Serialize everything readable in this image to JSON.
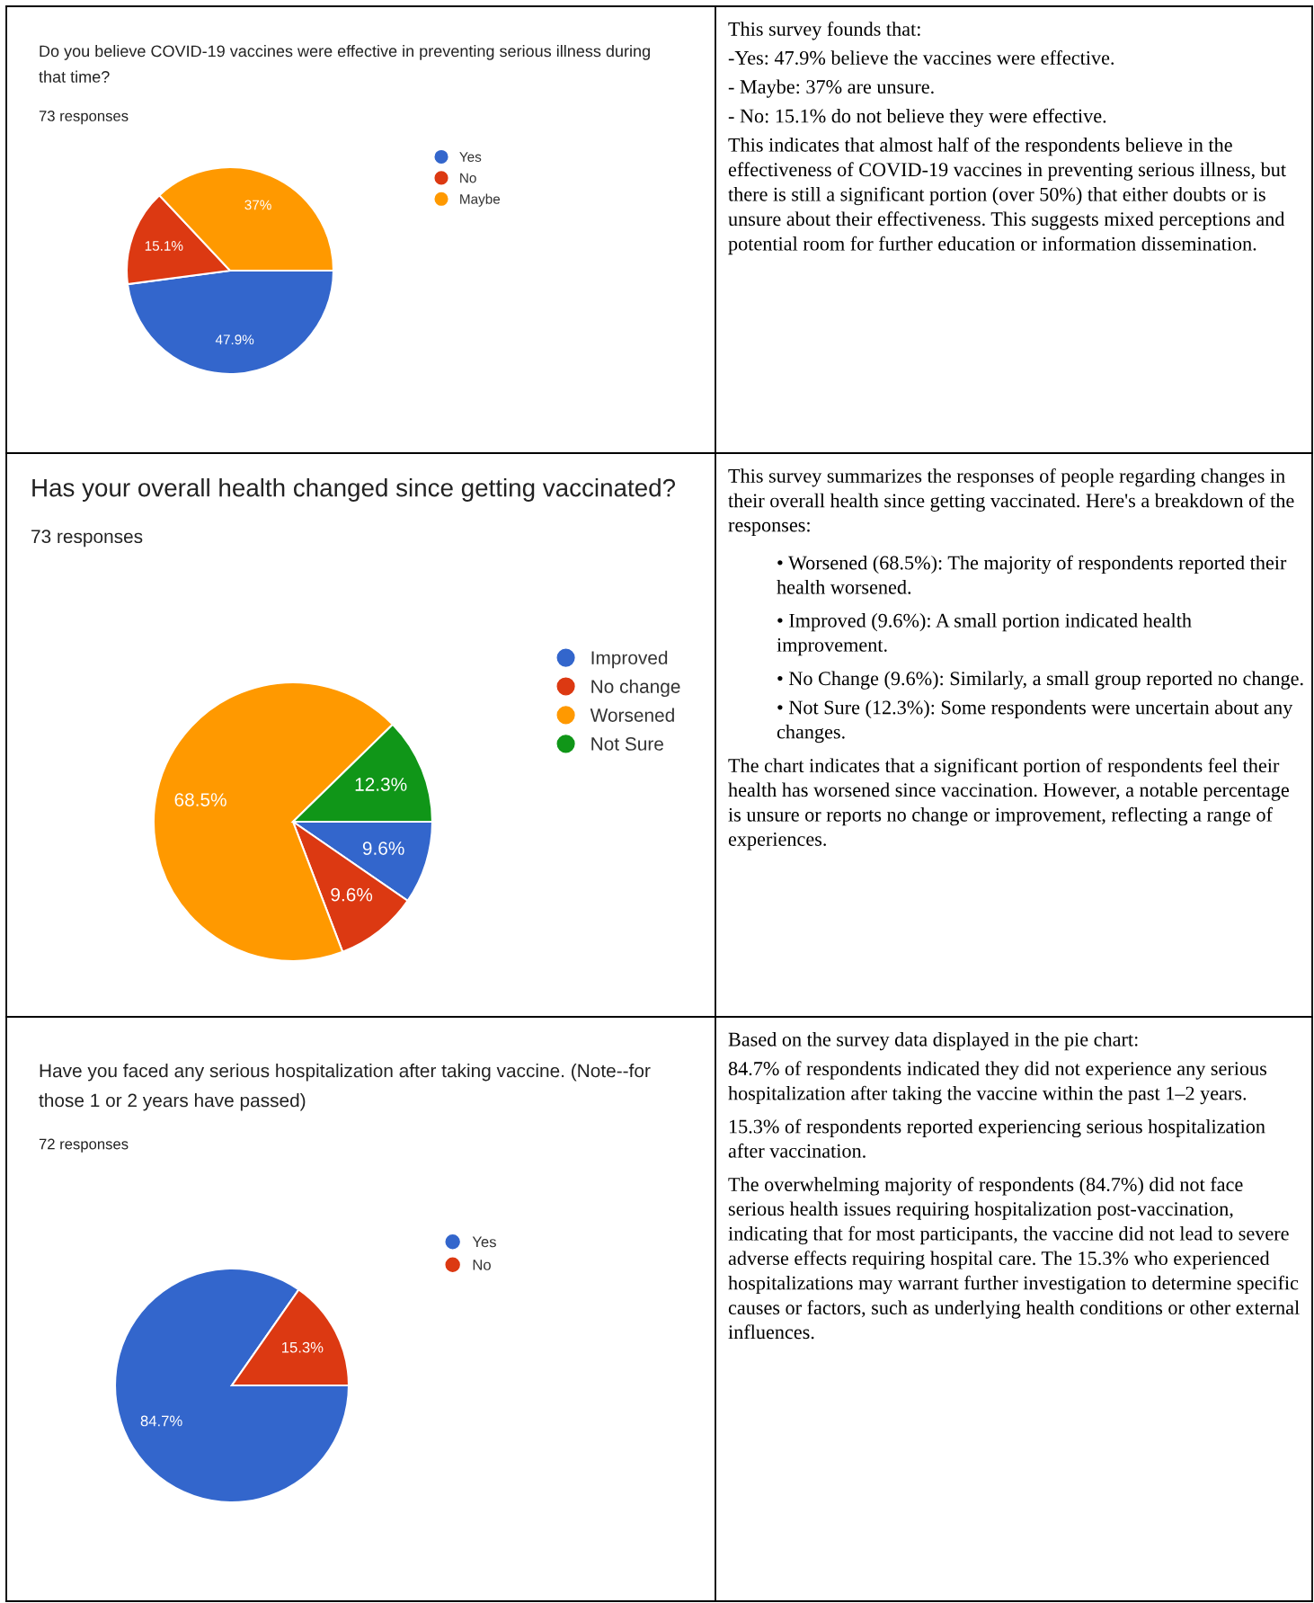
{
  "chart_data": [
    {
      "type": "pie",
      "title": "Do you believe COVID-19 vaccines were effective in preventing serious illness during that time?",
      "subtitle": "73 responses",
      "categories": [
        "Yes",
        "No",
        "Maybe"
      ],
      "values": [
        47.9,
        15.1,
        37
      ],
      "colors": [
        "#3366cc",
        "#dc3912",
        "#ff9900"
      ],
      "value_labels": [
        "47.9%",
        "15.1%",
        "37%"
      ],
      "legend": "right"
    },
    {
      "type": "other",
      "annotations": [
        "This survey founds that:",
        "-Yes: 47.9% believe the vaccines were effective.",
        "- Maybe: 37% are unsure.",
        "- No: 15.1% do not believe they were effective.",
        "This indicates that almost half of the respondents believe in the effectiveness of COVID-19 vaccines in preventing serious illness, but there is still a significant portion (over 50%) that either doubts or is unsure about their effectiveness. This suggests mixed perceptions and potential room for further education or information dissemination."
      ]
    },
    {
      "type": "pie",
      "title": "Has your overall health changed since getting vaccinated?",
      "subtitle": "73 responses",
      "categories": [
        "Improved",
        "No change",
        "Worsened",
        "Not Sure"
      ],
      "values": [
        9.6,
        9.6,
        68.5,
        12.3
      ],
      "colors": [
        "#3366cc",
        "#dc3912",
        "#ff9900",
        "#109618"
      ],
      "value_labels": [
        "9.6%",
        "9.6%",
        "68.5%",
        "12.3%"
      ],
      "legend": "right"
    },
    {
      "type": "other",
      "annotations": [
        "This survey summarizes the responses of people regarding changes in their overall health since getting vaccinated. Here's a breakdown of the responses:",
        "• Worsened (68.5%): The majority of respondents reported their health worsened.",
        "• Improved (9.6%): A small portion indicated health improvement.",
        "• No Change (9.6%): Similarly, a small group reported no change.",
        "• Not Sure (12.3%): Some respondents were uncertain about any changes.",
        "The chart indicates that a significant portion of respondents feel their health has worsened since vaccination. However, a notable percentage is unsure or reports no change or improvement, reflecting a range of experiences."
      ]
    },
    {
      "type": "pie",
      "title": "Have you faced any serious hospitalization after taking vaccine. (Note--for those 1 or 2 years have passed)",
      "subtitle": "72 responses",
      "categories": [
        "Yes",
        "No"
      ],
      "values": [
        84.7,
        15.3
      ],
      "colors": [
        "#3366cc",
        "#dc3912"
      ],
      "value_labels": [
        "84.7%",
        "15.3%"
      ],
      "legend": "right"
    },
    {
      "type": "other",
      "annotations": [
        "Based on the survey data displayed in the pie chart:",
        "84.7% of respondents indicated they did not experience any serious hospitalization after taking the vaccine within the past 1–2 years.",
        "15.3% of respondents reported experiencing serious hospitalization after vaccination.",
        "The overwhelming majority of respondents (84.7%) did not face serious health issues requiring hospitalization post-vaccination, indicating that for most participants, the vaccine did not lead to severe adverse effects requiring hospital care. The 15.3% who experienced hospitalizations may warrant further investigation to determine specific causes or factors, such as underlying health conditions or other external influences."
      ]
    }
  ]
}
